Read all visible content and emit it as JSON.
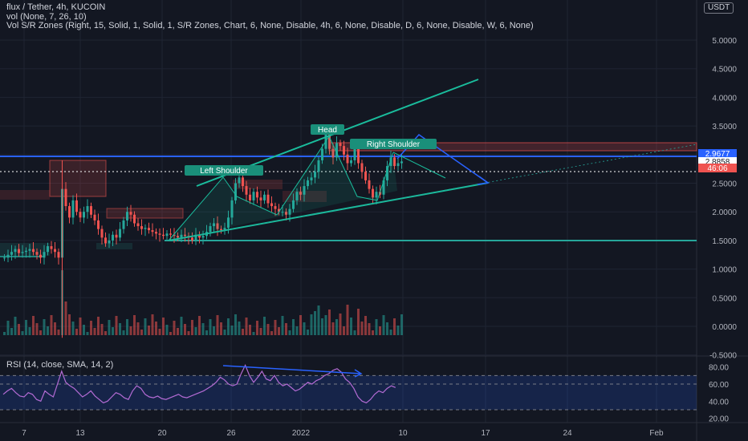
{
  "header": {
    "title": "flux / Tether, 4h, KUCOIN",
    "vol_indicator": "vol (None, 7, 26, 10)",
    "sr_indicator": "Vol S/R Zones (Right, 15, Solid, 1, Solid, 1, S/R Zones, Chart, 6, None, Disable, 4h, 6, None, Disable, D, 6, None, Disable, W, 6, None)",
    "currency": "USDT"
  },
  "rsi_legend": "RSI (14, close, SMA, 14, 2)",
  "colors": {
    "background": "#131722",
    "up": "#26a69a",
    "down": "#ef5350",
    "pattern": "#1abc9c",
    "forecast": "#2962ff",
    "rsi_line": "#b36bd4",
    "rsi_band": "#1e2a6a"
  },
  "price_labels": {
    "upper": "2.9677",
    "last": "2.8858",
    "countdown": "46:06"
  },
  "annotations": [
    "Head",
    "Right Shoulder",
    "Left Shoulder"
  ],
  "chart_data": [
    {
      "type": "candlestick",
      "title": "flux / Tether, 4h, KUCOIN",
      "y_ticks": [
        "5.0000",
        "4.5000",
        "4.0000",
        "3.5000",
        "3.0000",
        "2.5000",
        "2.0000",
        "1.5000",
        "1.0000",
        "0.5000",
        "0.0000",
        "-0.5000"
      ],
      "x_ticks": [
        "7",
        "13",
        "20",
        "26",
        "2022",
        "10",
        "17",
        "24",
        "Feb"
      ],
      "ylim": [
        -0.5,
        5.4
      ],
      "close_series": [
        1.2,
        1.25,
        1.3,
        1.35,
        1.28,
        1.3,
        1.32,
        1.35,
        1.3,
        1.25,
        1.2,
        1.3,
        1.4,
        1.35,
        1.3,
        1.2,
        2.4,
        2.1,
        1.9,
        2.2,
        2.0,
        1.9,
        2.0,
        2.1,
        1.95,
        1.85,
        1.7,
        1.55,
        1.45,
        1.5,
        1.6,
        1.55,
        1.7,
        1.85,
        2.0,
        1.95,
        1.8,
        1.75,
        1.7,
        1.72,
        1.68,
        1.65,
        1.62,
        1.6,
        1.58,
        1.62,
        1.6,
        1.58,
        1.55,
        1.6,
        1.58,
        1.55,
        1.5,
        1.6,
        1.55,
        1.58,
        1.65,
        1.75,
        1.8,
        1.7,
        1.68,
        1.72,
        1.9,
        2.2,
        2.5,
        2.6,
        2.45,
        2.3,
        2.2,
        2.35,
        2.25,
        2.2,
        2.3,
        2.15,
        2.1,
        2.05,
        2.0,
        2.0,
        1.95,
        2.05,
        2.2,
        2.35,
        2.3,
        2.45,
        2.55,
        2.6,
        2.7,
        2.9,
        3.1,
        3.35,
        3.1,
        2.95,
        3.2,
        3.15,
        3.0,
        2.85,
        2.9,
        3.1,
        2.85,
        2.7,
        2.55,
        2.4,
        2.25,
        2.35,
        2.3,
        2.55,
        2.8,
        2.95,
        2.8,
        2.85,
        2.88
      ]
    },
    {
      "type": "line",
      "title": "RSI (14, close, SMA, 14, 2)",
      "y_ticks": [
        "80.00",
        "60.00",
        "40.00",
        "20.00"
      ],
      "ylim": [
        15,
        90
      ],
      "bands": [
        70,
        60,
        30
      ],
      "values": [
        48,
        52,
        55,
        50,
        46,
        45,
        50,
        48,
        42,
        40,
        52,
        48,
        45,
        60,
        75,
        62,
        58,
        55,
        50,
        45,
        48,
        52,
        46,
        42,
        38,
        40,
        45,
        50,
        48,
        44,
        42,
        52,
        58,
        55,
        48,
        45,
        44,
        46,
        43,
        42,
        44,
        46,
        48,
        45,
        44,
        46,
        48,
        50,
        52,
        55,
        58,
        62,
        68,
        65,
        60,
        58,
        60,
        72,
        82,
        70,
        62,
        68,
        75,
        66,
        64,
        70,
        62,
        58,
        60,
        56,
        52,
        54,
        58,
        62,
        60,
        64,
        66,
        70,
        72,
        76,
        78,
        74,
        66,
        62,
        55,
        45,
        40,
        38,
        42,
        48,
        52,
        50,
        55,
        58,
        56
      ]
    }
  ]
}
